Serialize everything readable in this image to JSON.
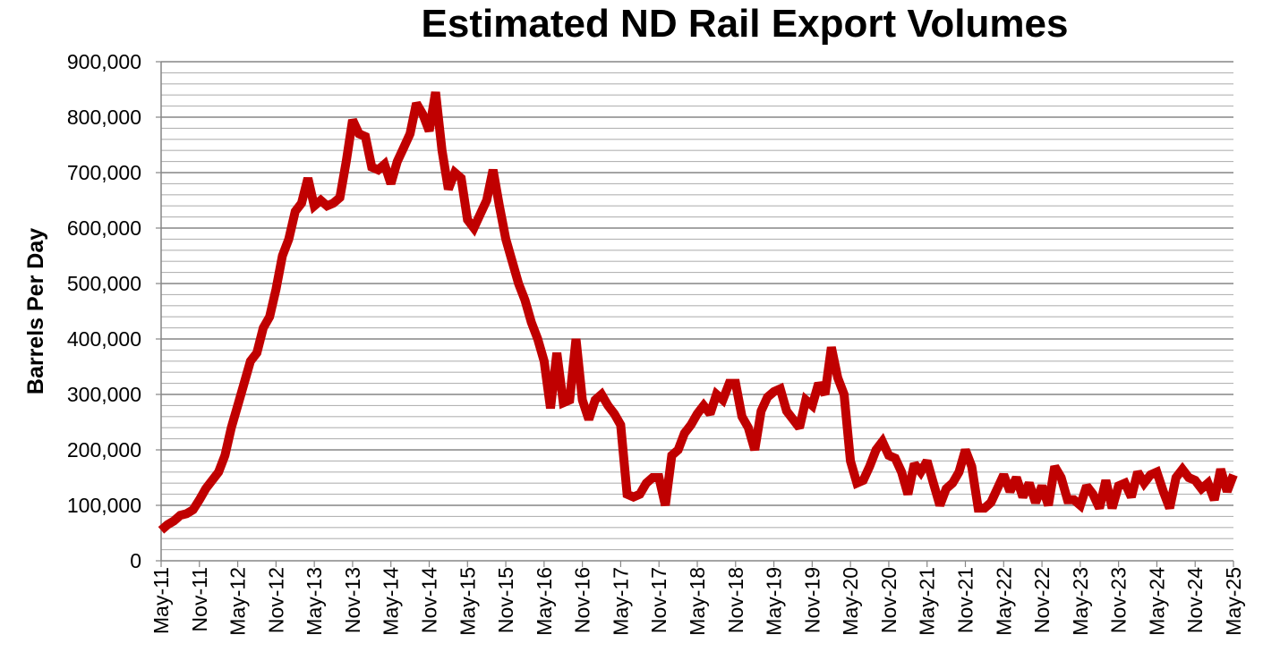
{
  "chart_data": {
    "type": "line",
    "title": "Estimated ND Rail Export Volumes",
    "xlabel": "",
    "ylabel": "Barrels Per Day",
    "ylim": [
      0,
      900000
    ],
    "y_major_step": 100000,
    "y_minor_step": 20000,
    "grid": true,
    "legend": "none",
    "line_color": "#c00000",
    "x_start": "May-11",
    "x_frequency": "monthly",
    "x_tick_labels": [
      "May-11",
      "Nov-11",
      "May-12",
      "Nov-12",
      "May-13",
      "Nov-13",
      "May-14",
      "Nov-14",
      "May-15",
      "Nov-15",
      "May-16",
      "Nov-16",
      "May-17",
      "Nov-17",
      "May-18",
      "Nov-18",
      "May-19",
      "Nov-19",
      "May-20",
      "Nov-20",
      "May-21",
      "Nov-21",
      "May-22",
      "Nov-22",
      "May-23",
      "Nov-23",
      "May-24",
      "Nov-24",
      "May-25"
    ],
    "y_tick_labels": [
      "0",
      "100,000",
      "200,000",
      "300,000",
      "400,000",
      "500,000",
      "600,000",
      "700,000",
      "800,000",
      "900,000"
    ],
    "series": [
      {
        "name": "Estimated ND Rail Export Volumes",
        "values": [
          55000,
          65000,
          72000,
          82000,
          85000,
          92000,
          110000,
          130000,
          145000,
          160000,
          190000,
          240000,
          280000,
          320000,
          360000,
          375000,
          420000,
          440000,
          490000,
          550000,
          580000,
          630000,
          645000,
          690000,
          640000,
          650000,
          640000,
          645000,
          655000,
          720000,
          795000,
          770000,
          765000,
          710000,
          705000,
          715000,
          680000,
          720000,
          745000,
          770000,
          825000,
          805000,
          775000,
          845000,
          740000,
          670000,
          700000,
          690000,
          615000,
          600000,
          625000,
          650000,
          705000,
          640000,
          580000,
          540000,
          500000,
          470000,
          430000,
          400000,
          360000,
          275000,
          375000,
          285000,
          290000,
          400000,
          290000,
          255000,
          290000,
          300000,
          280000,
          265000,
          245000,
          120000,
          115000,
          120000,
          140000,
          150000,
          150000,
          100000,
          190000,
          200000,
          230000,
          245000,
          265000,
          280000,
          265000,
          300000,
          290000,
          320000,
          320000,
          260000,
          240000,
          200000,
          270000,
          295000,
          305000,
          310000,
          270000,
          255000,
          240000,
          290000,
          280000,
          320000,
          300000,
          385000,
          330000,
          300000,
          180000,
          140000,
          145000,
          170000,
          200000,
          215000,
          190000,
          185000,
          160000,
          120000,
          175000,
          160000,
          180000,
          140000,
          100000,
          130000,
          140000,
          160000,
          200000,
          170000,
          95000,
          95000,
          105000,
          130000,
          155000,
          125000,
          150000,
          115000,
          140000,
          105000,
          135000,
          100000,
          170000,
          150000,
          110000,
          110000,
          100000,
          135000,
          120000,
          95000,
          145000,
          95000,
          135000,
          140000,
          115000,
          160000,
          140000,
          155000,
          160000,
          125000,
          95000,
          150000,
          165000,
          150000,
          145000,
          130000,
          140000,
          110000,
          165000,
          125000,
          155000
        ]
      }
    ]
  }
}
